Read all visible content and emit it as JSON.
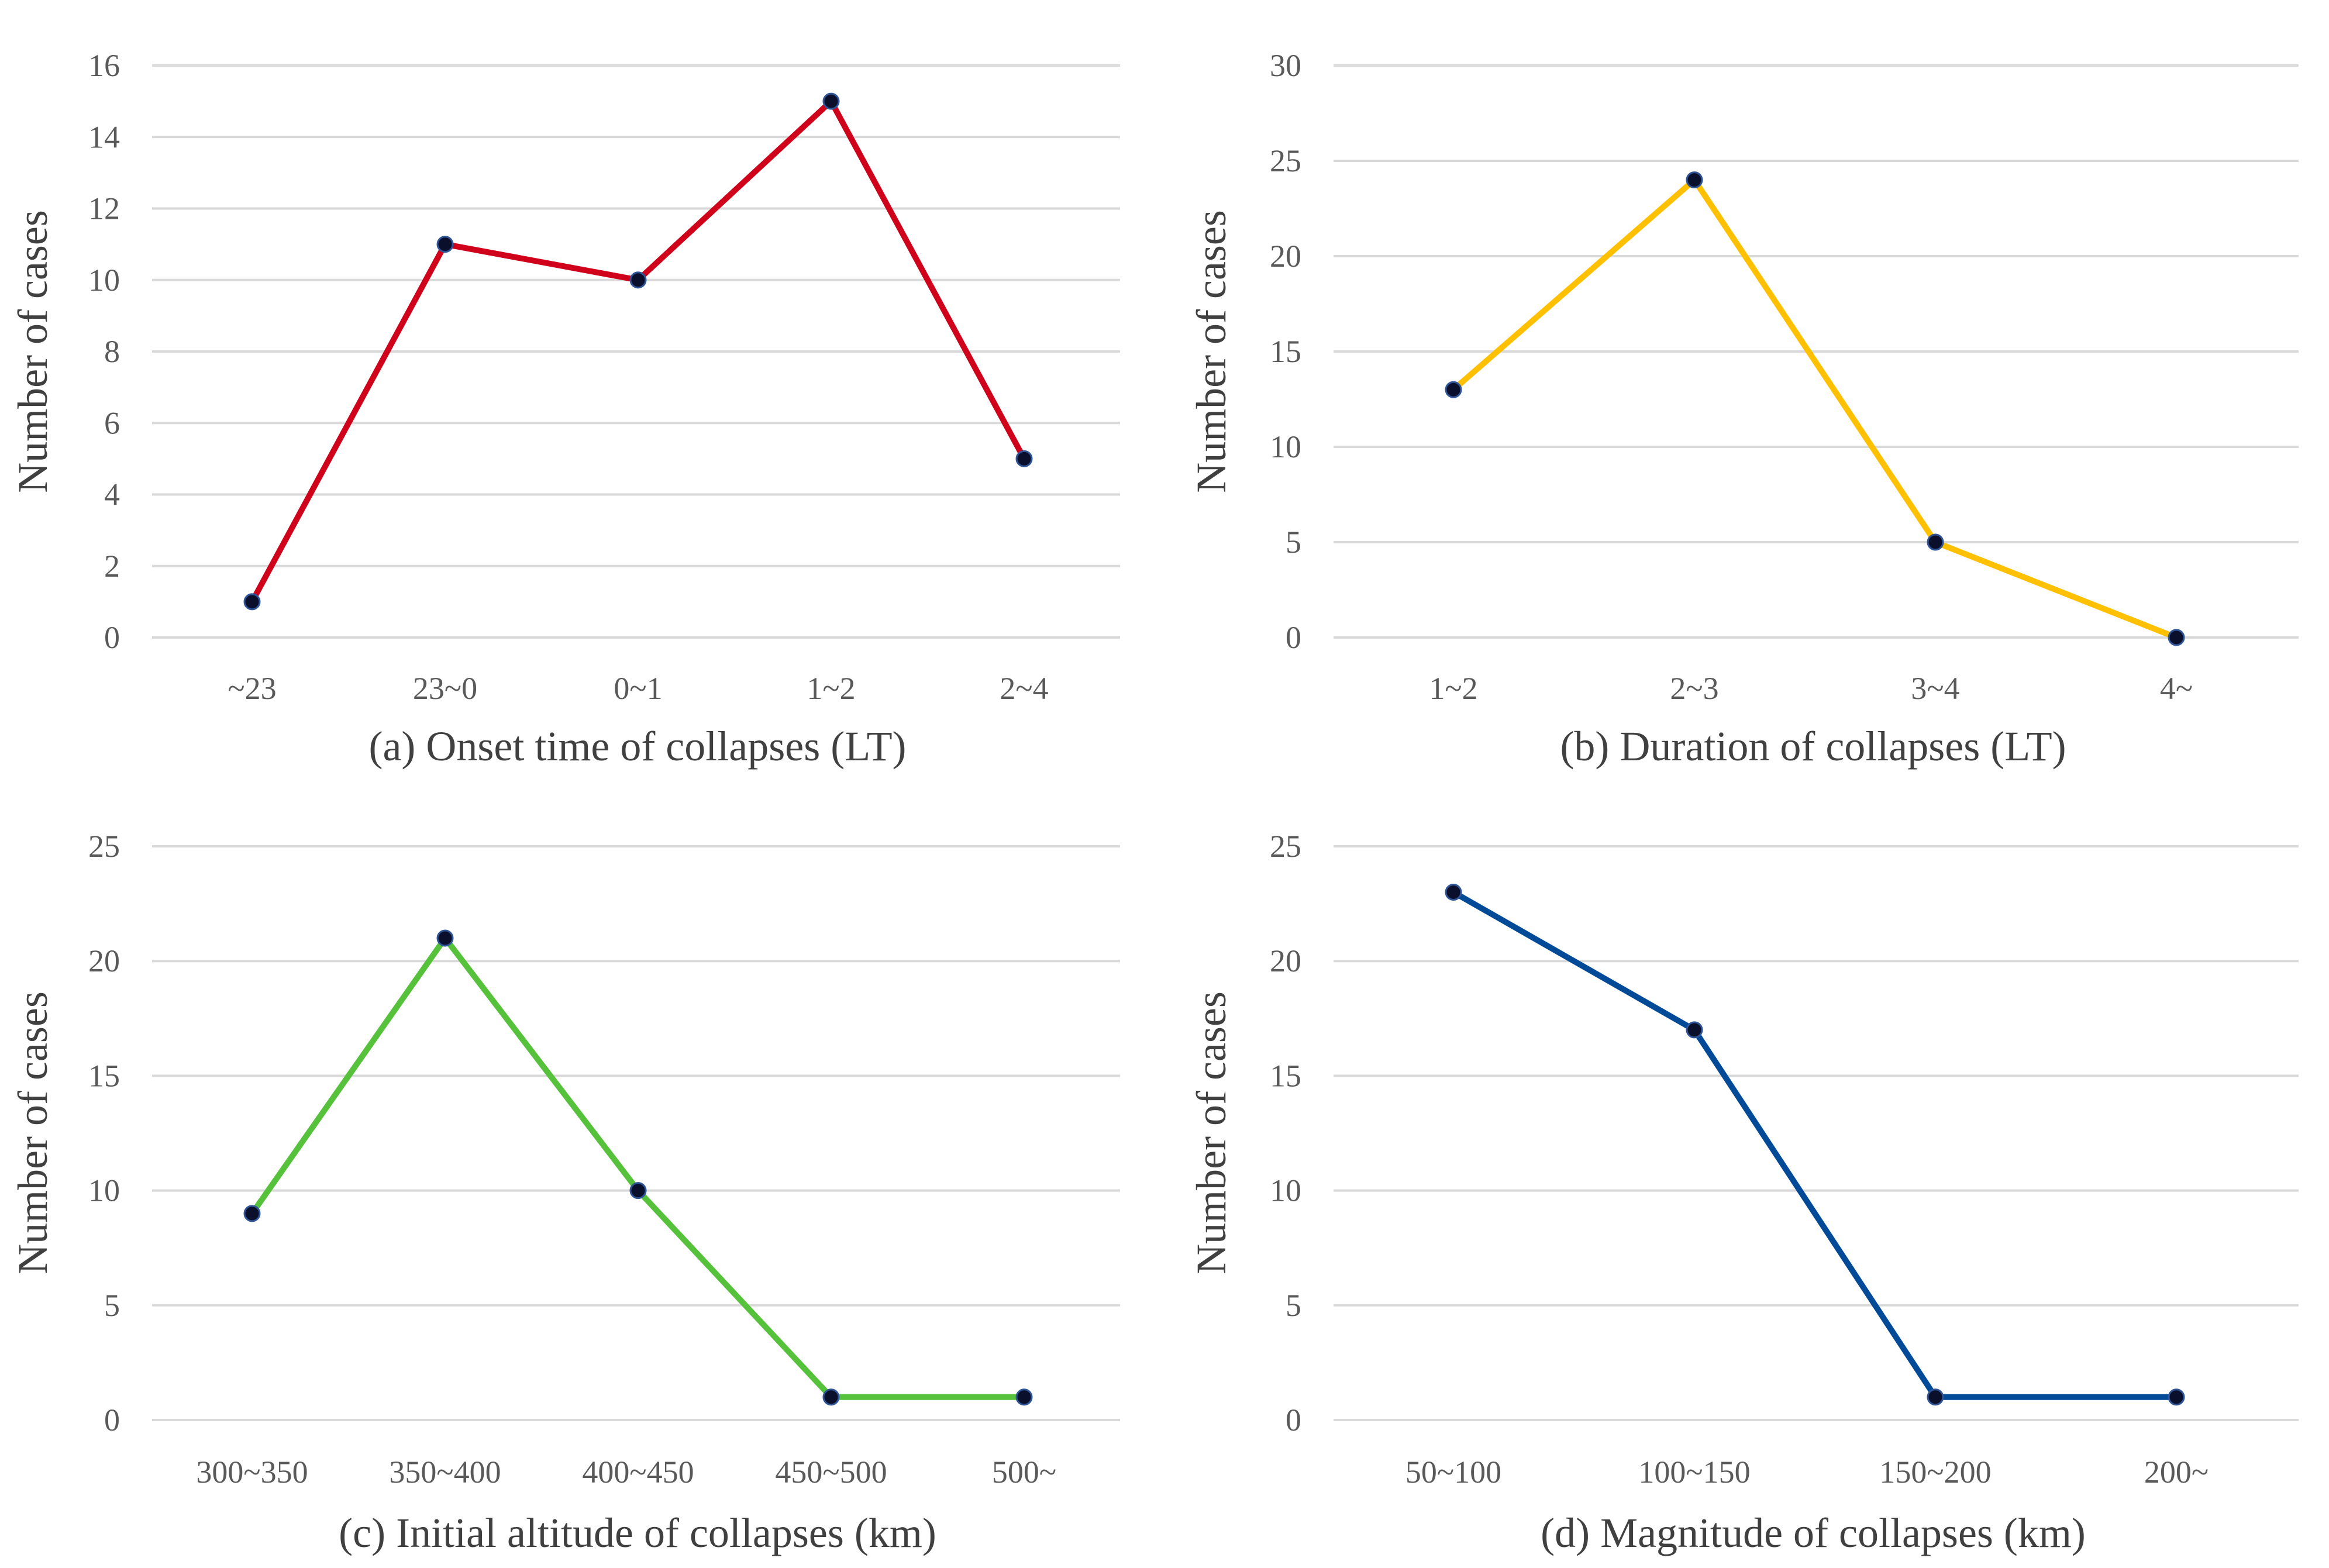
{
  "chart_data": [
    {
      "id": "a",
      "type": "line",
      "title": "(a) Onset time of collapses (LT)",
      "ylabel": "Number of cases",
      "xlabel": "",
      "categories": [
        "~23",
        "23~0",
        "0~1",
        "1~2",
        "2~4"
      ],
      "values": [
        1,
        11,
        10,
        15,
        5
      ],
      "ylim": [
        0,
        16
      ],
      "yticks": [
        0,
        2,
        4,
        6,
        8,
        10,
        12,
        14,
        16
      ],
      "color": "#d0021b",
      "grid": true
    },
    {
      "id": "b",
      "type": "line",
      "title": "(b) Duration of collapses (LT)",
      "ylabel": "Number of cases",
      "xlabel": "",
      "categories": [
        "1~2",
        "2~3",
        "3~4",
        "4~"
      ],
      "values": [
        13,
        24,
        5,
        0
      ],
      "ylim": [
        0,
        30
      ],
      "yticks": [
        0,
        5,
        10,
        15,
        20,
        25,
        30
      ],
      "color": "#ffc000",
      "grid": true
    },
    {
      "id": "c",
      "type": "line",
      "title": "(c) Initial altitude of collapses (km)",
      "ylabel": "Number of cases",
      "xlabel": "",
      "categories": [
        "300~350",
        "350~400",
        "400~450",
        "450~500",
        "500~"
      ],
      "values": [
        9,
        21,
        10,
        1,
        1
      ],
      "ylim": [
        0,
        25
      ],
      "yticks": [
        0,
        5,
        10,
        15,
        20,
        25
      ],
      "color": "#56c13a",
      "grid": true
    },
    {
      "id": "d",
      "type": "line",
      "title": "(d) Magnitude of collapses (km)",
      "ylabel": "Number of cases",
      "xlabel": "",
      "categories": [
        "50~100",
        "100~150",
        "150~200",
        "200~"
      ],
      "values": [
        23,
        17,
        1,
        1
      ],
      "ylim": [
        0,
        25
      ],
      "yticks": [
        0,
        5,
        10,
        15,
        20,
        25
      ],
      "color": "#004a98",
      "grid": true
    }
  ]
}
